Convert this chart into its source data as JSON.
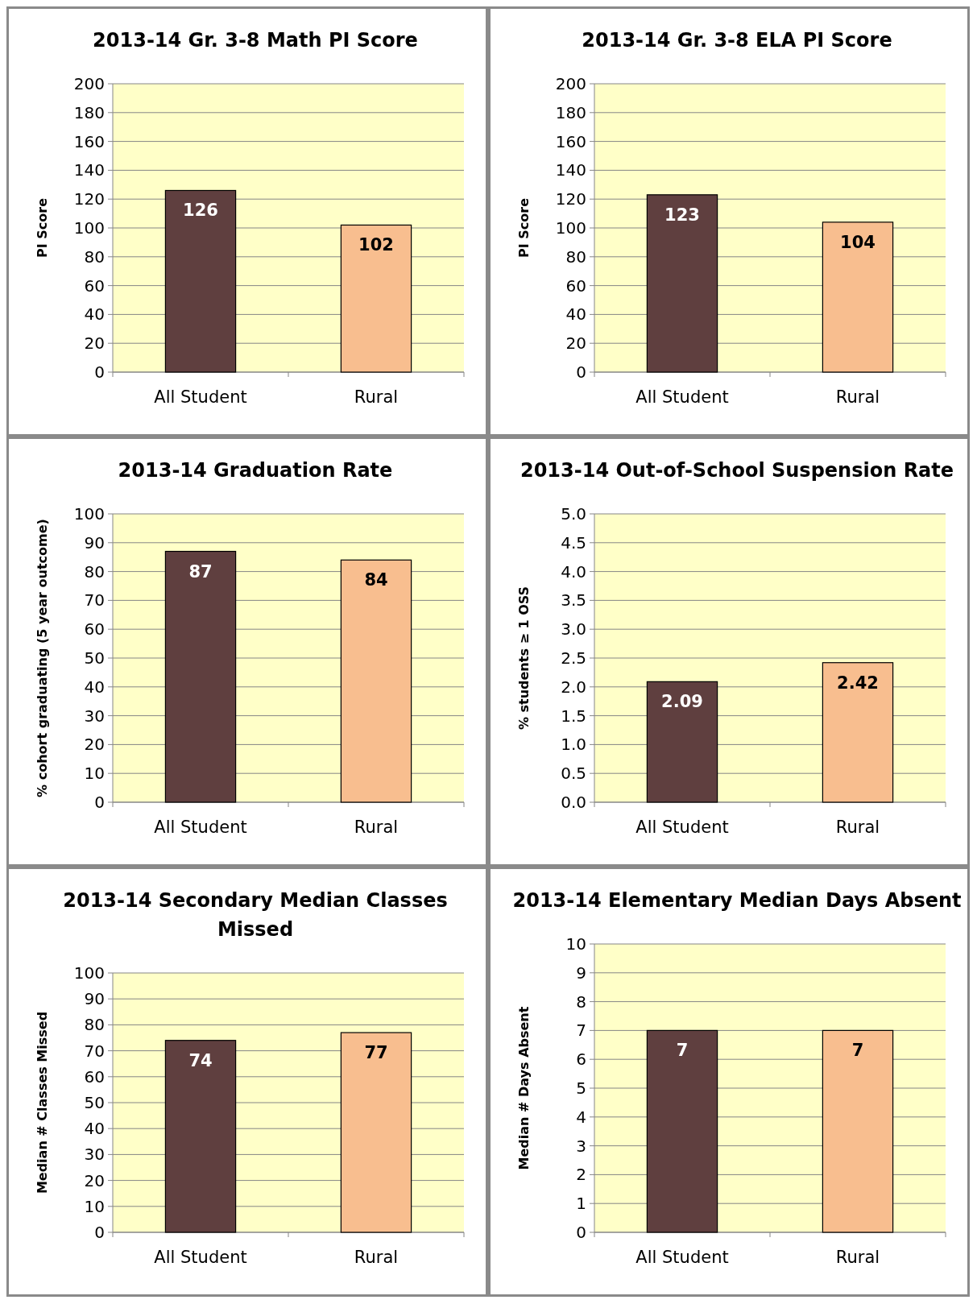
{
  "chart_data": [
    {
      "type": "bar",
      "title": "2013-14 Gr. 3-8 Math PI Score",
      "ylabel": "PI Score",
      "categories": [
        "All Student",
        "Rural"
      ],
      "values": [
        126,
        102
      ],
      "colors": [
        "#5f3f3f",
        "#f8be8f"
      ],
      "ylim": [
        0,
        200
      ],
      "yticks": [
        0,
        20,
        40,
        60,
        80,
        100,
        120,
        140,
        160,
        180,
        200
      ],
      "grid": "y",
      "data_labels": true
    },
    {
      "type": "bar",
      "title": "2013-14 Gr. 3-8 ELA PI Score",
      "ylabel": "PI Score",
      "categories": [
        "All Student",
        "Rural"
      ],
      "values": [
        123,
        104
      ],
      "colors": [
        "#5f3f3f",
        "#f8be8f"
      ],
      "ylim": [
        0,
        200
      ],
      "yticks": [
        0,
        20,
        40,
        60,
        80,
        100,
        120,
        140,
        160,
        180,
        200
      ],
      "grid": "y",
      "data_labels": true
    },
    {
      "type": "bar",
      "title": "2013-14 Graduation Rate",
      "ylabel": "% cohort graduating (5 year outcome)",
      "categories": [
        "All Student",
        "Rural"
      ],
      "values": [
        87,
        84
      ],
      "colors": [
        "#5f3f3f",
        "#f8be8f"
      ],
      "ylim": [
        0,
        100
      ],
      "yticks": [
        0,
        10,
        20,
        30,
        40,
        50,
        60,
        70,
        80,
        90,
        100
      ],
      "grid": "y",
      "data_labels": true
    },
    {
      "type": "bar",
      "title": "2013-14 Out-of-School Suspension Rate",
      "ylabel": "% students ≥ 1 OSS",
      "categories": [
        "All Student",
        "Rural"
      ],
      "values": [
        2.09,
        2.42
      ],
      "colors": [
        "#5f3f3f",
        "#f8be8f"
      ],
      "ylim": [
        0,
        5
      ],
      "yticks": [
        {
          "value": 0,
          "label": "0.0"
        },
        0.5,
        {
          "value": 1,
          "label": "1.0"
        },
        1.5,
        {
          "value": 2,
          "label": "2.0"
        },
        2.5,
        {
          "value": 3,
          "label": "3.0"
        },
        3.5,
        {
          "value": 4,
          "label": "4.0"
        },
        4.5,
        {
          "value": 5,
          "label": "5.0"
        }
      ],
      "grid": "y",
      "data_labels": true
    },
    {
      "type": "bar",
      "title": "2013-14 Secondary Median Classes Missed",
      "ylabel": "Median # Classes Missed",
      "categories": [
        "All Student",
        "Rural"
      ],
      "values": [
        74,
        77
      ],
      "colors": [
        "#5f3f3f",
        "#f8be8f"
      ],
      "ylim": [
        0,
        100
      ],
      "yticks": [
        0,
        10,
        20,
        30,
        40,
        50,
        60,
        70,
        80,
        90,
        100
      ],
      "grid": "y",
      "data_labels": true
    },
    {
      "type": "bar",
      "title": "2013-14 Elementary Median Days Absent",
      "ylabel": "Median # Days Absent",
      "categories": [
        "All Student",
        "Rural"
      ],
      "values": [
        7,
        7
      ],
      "colors": [
        "#5f3f3f",
        "#f8be8f"
      ],
      "ylim": [
        0,
        10
      ],
      "yticks": [
        0,
        1,
        2,
        3,
        4,
        5,
        6,
        7,
        8,
        9,
        10
      ],
      "grid": "y",
      "data_labels": true
    }
  ]
}
